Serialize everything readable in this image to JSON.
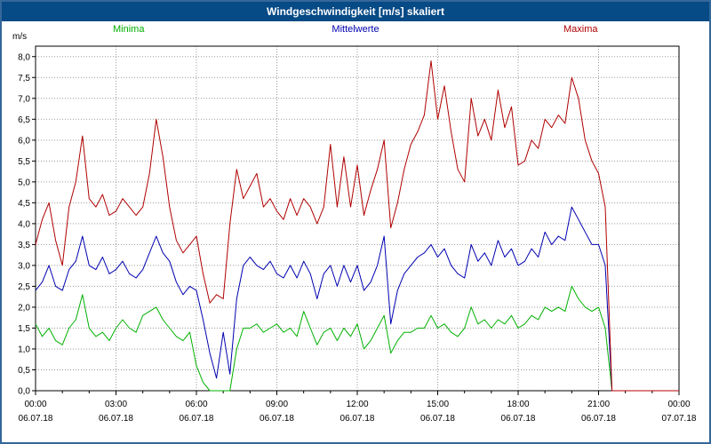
{
  "window": {
    "title": "Windgeschwindigkeit [m/s] skaliert"
  },
  "colors": {
    "titlebar_bg": "#064a86",
    "titlebar_text": "#ffffff",
    "page_border": "#34679a",
    "grid": "#999999",
    "axis": "#000000",
    "plot_bg": "#ffffff"
  },
  "chart_data": {
    "type": "line",
    "title": "Windgeschwindigkeit [m/s] skaliert",
    "ylabel": "m/s",
    "xlabel": "",
    "ylim": [
      0,
      8.25
    ],
    "y_tick_step": 0.5,
    "y_tick_labels": [
      "0,0",
      "0,5",
      "1,0",
      "1,5",
      "2,0",
      "2,5",
      "3,0",
      "3,5",
      "4,0",
      "4,5",
      "5,0",
      "5,5",
      "6,0",
      "6,5",
      "7,0",
      "7,5",
      "8,0"
    ],
    "xlim_hours": [
      0,
      24
    ],
    "sample_step_hours": 0.25,
    "grid": "dotted",
    "legend_position": "top",
    "x_ticks": [
      {
        "hour": 0,
        "time": "00:00",
        "date": "06.07.18"
      },
      {
        "hour": 3,
        "time": "03:00",
        "date": "06.07.18"
      },
      {
        "hour": 6,
        "time": "06:00",
        "date": "06.07.18"
      },
      {
        "hour": 9,
        "time": "09:00",
        "date": "06.07.18"
      },
      {
        "hour": 12,
        "time": "12:00",
        "date": "06.07.18"
      },
      {
        "hour": 15,
        "time": "15:00",
        "date": "06.07.18"
      },
      {
        "hour": 18,
        "time": "18:00",
        "date": "06.07.18"
      },
      {
        "hour": 21,
        "time": "21:00",
        "date": "06.07.18"
      },
      {
        "hour": 24,
        "time": "00:00",
        "date": "07.07.18"
      }
    ],
    "series": [
      {
        "name": "Minima",
        "color": "#00b000",
        "values": [
          1.6,
          1.3,
          1.5,
          1.2,
          1.1,
          1.5,
          1.7,
          2.3,
          1.5,
          1.3,
          1.4,
          1.2,
          1.5,
          1.7,
          1.5,
          1.4,
          1.8,
          1.9,
          2.0,
          1.7,
          1.5,
          1.3,
          1.2,
          1.4,
          0.6,
          0.2,
          0.0,
          0.0,
          0.0,
          0.0,
          1.0,
          1.5,
          1.5,
          1.6,
          1.4,
          1.5,
          1.6,
          1.4,
          1.5,
          1.3,
          1.9,
          1.5,
          1.1,
          1.4,
          1.5,
          1.2,
          1.5,
          1.3,
          1.6,
          1.0,
          1.2,
          1.5,
          1.8,
          0.9,
          1.2,
          1.4,
          1.4,
          1.5,
          1.5,
          1.8,
          1.5,
          1.6,
          1.4,
          1.3,
          1.5,
          2.0,
          1.6,
          1.7,
          1.5,
          1.7,
          1.6,
          1.8,
          1.5,
          1.6,
          1.8,
          1.7,
          2.0,
          1.9,
          2.0,
          1.9,
          2.5,
          2.2,
          2.0,
          1.9,
          2.0,
          1.5,
          0.0,
          0.0,
          0.0,
          0.0,
          0.0,
          0.0,
          0.0,
          0.0,
          0.0,
          0.0,
          0.0
        ]
      },
      {
        "name": "Mittelwerte",
        "color": "#0000b0",
        "values": [
          2.4,
          2.6,
          3.0,
          2.5,
          2.4,
          2.9,
          3.1,
          3.7,
          3.0,
          2.9,
          3.2,
          2.8,
          2.9,
          3.1,
          2.8,
          2.7,
          2.9,
          3.3,
          3.7,
          3.3,
          3.1,
          2.6,
          2.3,
          2.5,
          2.4,
          1.7,
          0.9,
          0.3,
          1.4,
          0.4,
          2.2,
          3.0,
          3.2,
          3.0,
          2.9,
          3.1,
          2.8,
          2.7,
          3.0,
          2.7,
          3.1,
          2.8,
          2.2,
          2.8,
          3.0,
          2.5,
          3.0,
          2.6,
          3.0,
          2.4,
          2.6,
          3.0,
          3.7,
          1.6,
          2.4,
          2.8,
          3.0,
          3.2,
          3.3,
          3.5,
          3.2,
          3.4,
          3.0,
          2.8,
          2.7,
          3.5,
          3.1,
          3.3,
          3.0,
          3.6,
          3.2,
          3.4,
          3.0,
          3.1,
          3.4,
          3.2,
          3.8,
          3.5,
          3.7,
          3.6,
          4.4,
          4.1,
          3.8,
          3.5,
          3.5,
          3.0,
          0.0,
          0.0,
          0.0,
          0.0,
          0.0,
          0.0,
          0.0,
          0.0,
          0.0,
          0.0,
          0.0
        ]
      },
      {
        "name": "Maxima",
        "color": "#b00000",
        "values": [
          3.5,
          4.1,
          4.5,
          3.6,
          3.0,
          4.4,
          5.0,
          6.1,
          4.6,
          4.4,
          4.7,
          4.2,
          4.3,
          4.6,
          4.4,
          4.2,
          4.4,
          5.2,
          6.5,
          5.6,
          4.4,
          3.6,
          3.3,
          3.5,
          3.7,
          2.8,
          2.1,
          2.3,
          2.2,
          4.0,
          5.3,
          4.6,
          4.9,
          5.2,
          4.4,
          4.6,
          4.3,
          4.1,
          4.6,
          4.2,
          4.6,
          4.4,
          4.0,
          4.4,
          5.9,
          4.4,
          5.6,
          4.4,
          5.4,
          4.2,
          4.8,
          5.3,
          6.0,
          3.9,
          4.5,
          5.3,
          5.9,
          6.2,
          6.6,
          7.9,
          6.5,
          7.3,
          6.2,
          5.3,
          5.0,
          7.0,
          6.1,
          6.5,
          6.0,
          7.2,
          6.3,
          6.8,
          5.4,
          5.5,
          6.0,
          5.8,
          6.5,
          6.3,
          6.6,
          6.4,
          7.5,
          7.0,
          6.0,
          5.5,
          5.2,
          4.4,
          0.0,
          0.0,
          0.0,
          0.0,
          0.0,
          0.0,
          0.0,
          0.0,
          0.0,
          0.0,
          0.0
        ]
      }
    ]
  }
}
